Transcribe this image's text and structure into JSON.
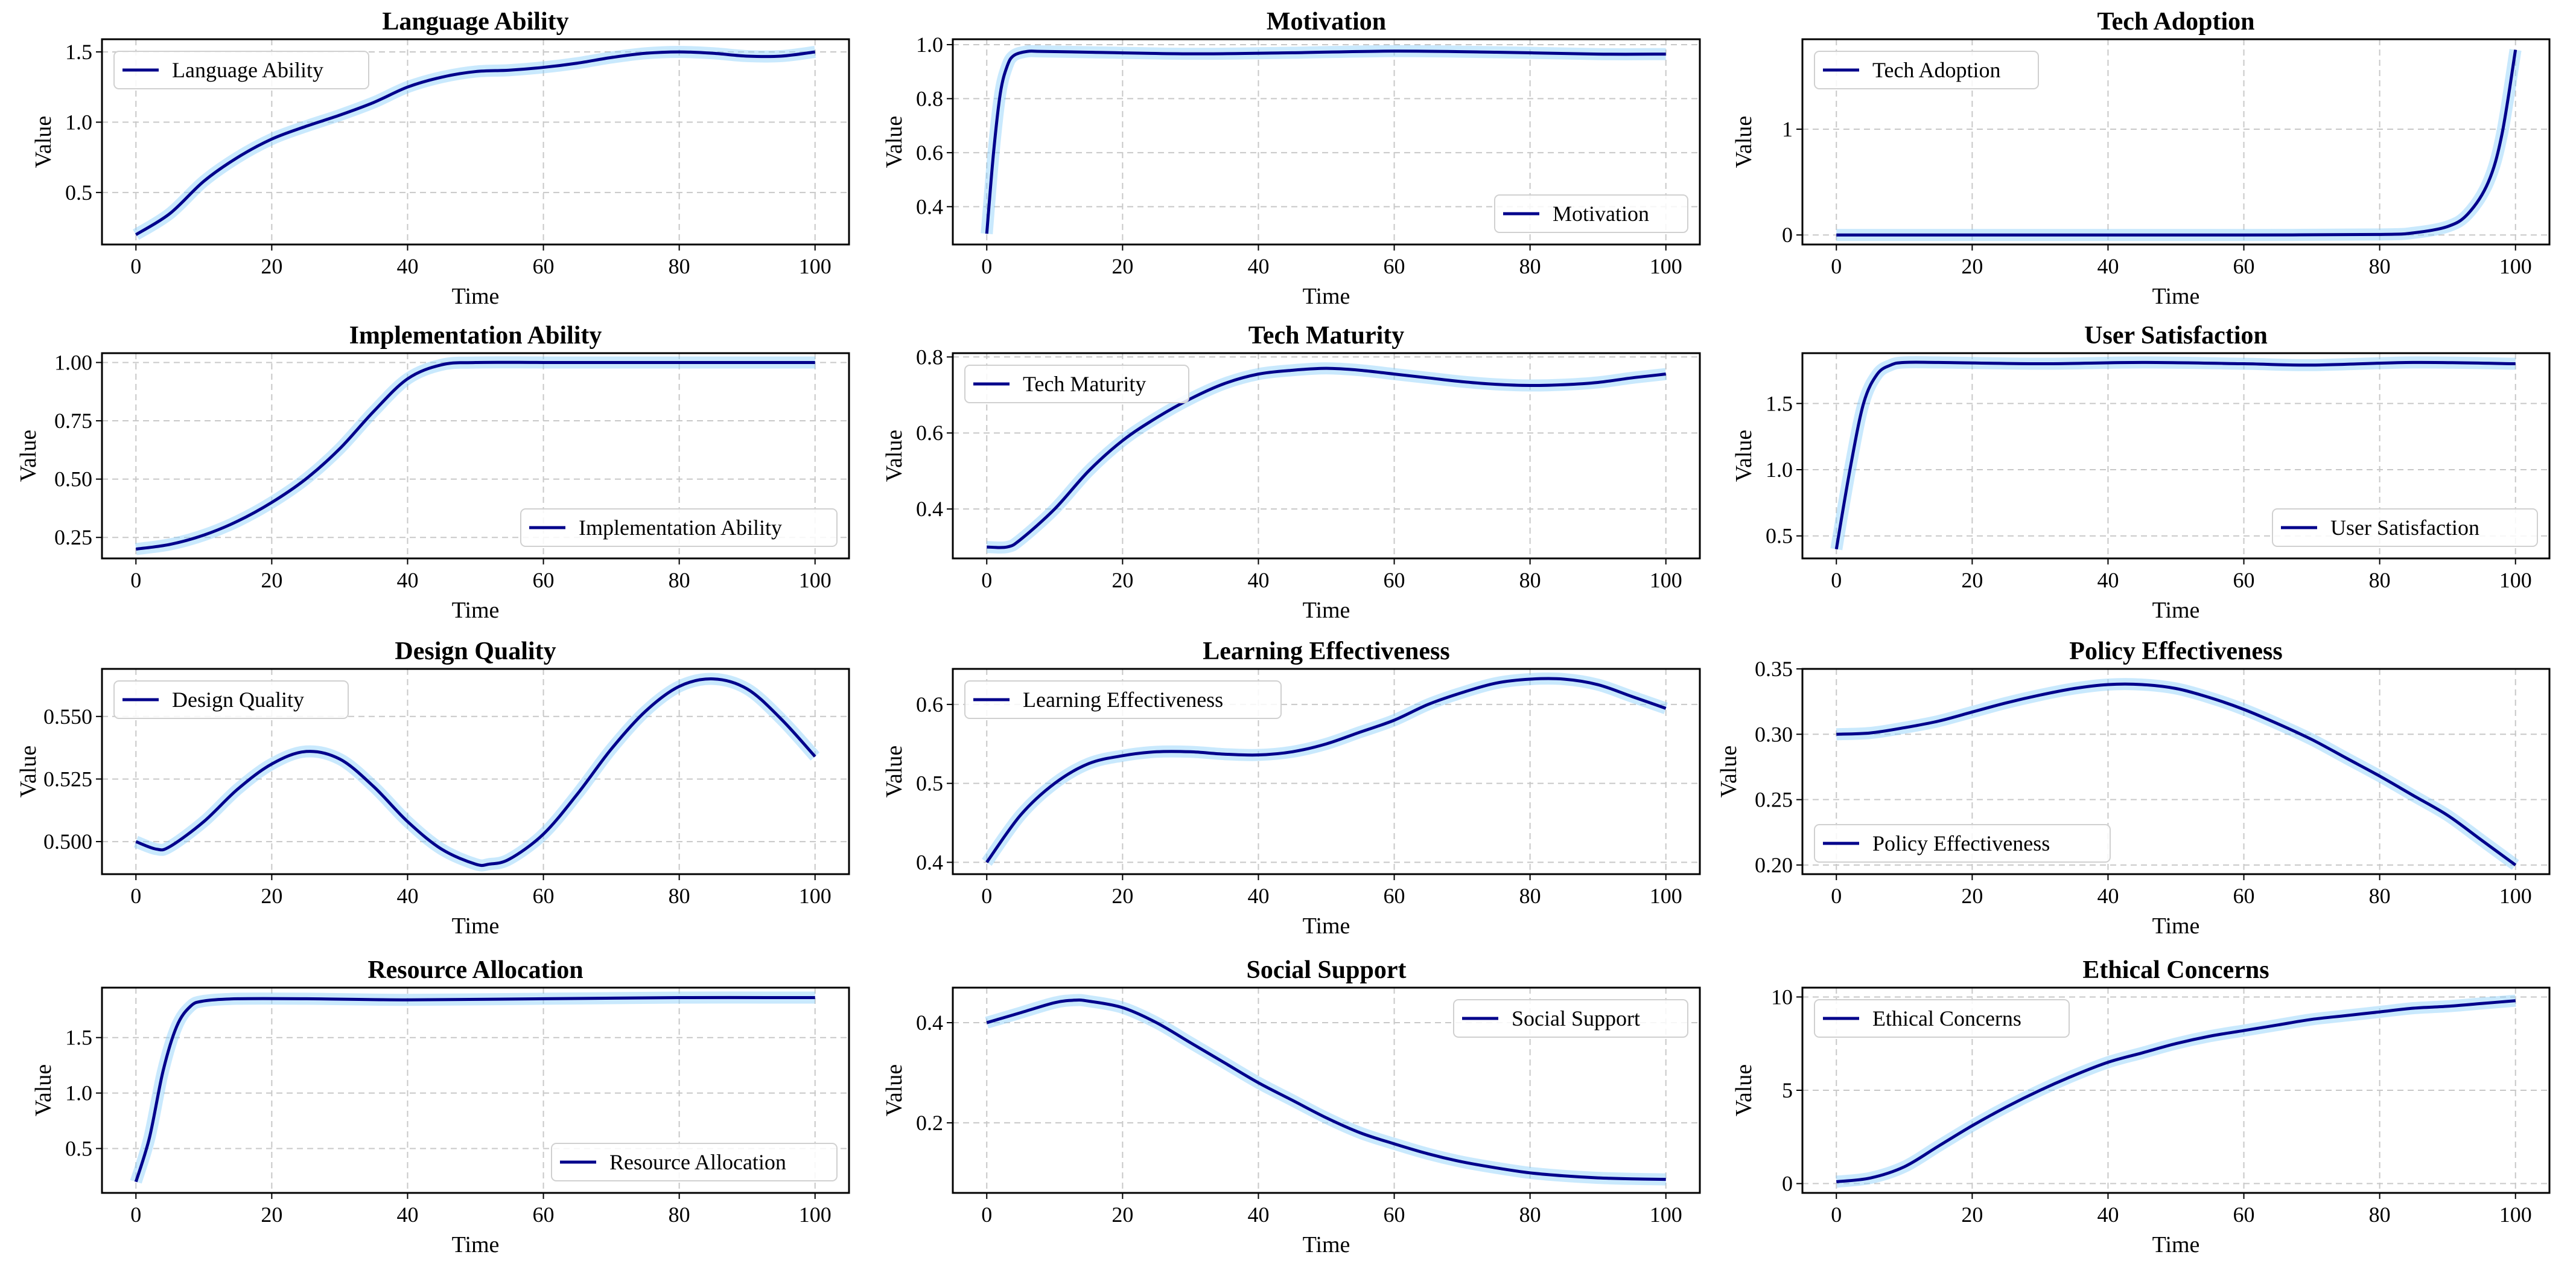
{
  "colors": {
    "line": "#00008b",
    "band": "#87cefa",
    "grid": "#c8c8c8",
    "axis": "#000000"
  },
  "chart_data": [
    {
      "type": "line",
      "title": "Language Ability",
      "xlabel": "Time",
      "ylabel": "Value",
      "xlim": [
        -5,
        105
      ],
      "ylim": [
        0.13,
        1.59
      ],
      "xticks": [
        0,
        20,
        40,
        60,
        80,
        100
      ],
      "yticks": [
        "0.5",
        "1.0",
        "1.5"
      ],
      "grid": true,
      "legend": "upper-left",
      "series": [
        {
          "name": "Language Ability",
          "x": [
            0,
            5,
            10,
            15,
            20,
            25,
            30,
            35,
            40,
            45,
            50,
            55,
            60,
            65,
            70,
            75,
            80,
            85,
            90,
            95,
            100
          ],
          "y": [
            0.2,
            0.35,
            0.58,
            0.75,
            0.88,
            0.97,
            1.05,
            1.14,
            1.25,
            1.32,
            1.36,
            1.37,
            1.39,
            1.42,
            1.46,
            1.49,
            1.5,
            1.49,
            1.47,
            1.47,
            1.5
          ]
        }
      ]
    },
    {
      "type": "line",
      "title": "Motivation",
      "xlabel": "Time",
      "ylabel": "Value",
      "xlim": [
        -5,
        105
      ],
      "ylim": [
        0.26,
        1.02
      ],
      "xticks": [
        0,
        20,
        40,
        60,
        80,
        100
      ],
      "yticks": [
        "0.4",
        "0.6",
        "0.8",
        "1.0"
      ],
      "grid": true,
      "legend": "lower-right",
      "series": [
        {
          "name": "Motivation",
          "x": [
            0,
            1,
            2,
            3,
            4,
            6,
            8,
            15,
            30,
            45,
            60,
            75,
            90,
            100
          ],
          "y": [
            0.3,
            0.6,
            0.82,
            0.92,
            0.96,
            0.975,
            0.975,
            0.972,
            0.966,
            0.97,
            0.976,
            0.972,
            0.965,
            0.965
          ]
        }
      ]
    },
    {
      "type": "line",
      "title": "Tech Adoption",
      "xlabel": "Time",
      "ylabel": "Value",
      "xlim": [
        -5,
        105
      ],
      "ylim": [
        -0.09,
        1.85
      ],
      "xticks": [
        0,
        20,
        40,
        60,
        80,
        100
      ],
      "yticks": [
        "0",
        "1"
      ],
      "grid": true,
      "legend": "upper-left",
      "series": [
        {
          "name": "Tech Adoption",
          "x": [
            0,
            20,
            40,
            60,
            80,
            85,
            90,
            93,
            96,
            98,
            100
          ],
          "y": [
            0,
            0,
            0,
            0,
            0.005,
            0.02,
            0.08,
            0.2,
            0.5,
            0.95,
            1.75
          ]
        }
      ]
    },
    {
      "type": "line",
      "title": "Implementation Ability",
      "xlabel": "Time",
      "ylabel": "Value",
      "xlim": [
        -5,
        105
      ],
      "ylim": [
        0.16,
        1.04
      ],
      "xticks": [
        0,
        20,
        40,
        60,
        80,
        100
      ],
      "yticks": [
        "0.25",
        "0.50",
        "0.75",
        "1.00"
      ],
      "grid": true,
      "legend": "lower-right",
      "series": [
        {
          "name": "Implementation Ability",
          "x": [
            0,
            5,
            10,
            15,
            20,
            25,
            30,
            35,
            40,
            45,
            50,
            60,
            70,
            80,
            90,
            100
          ],
          "y": [
            0.2,
            0.22,
            0.26,
            0.32,
            0.4,
            0.5,
            0.63,
            0.79,
            0.93,
            0.99,
            1.0,
            1.0,
            1.0,
            1.0,
            1.0,
            1.0
          ]
        }
      ]
    },
    {
      "type": "line",
      "title": "Tech Maturity",
      "xlabel": "Time",
      "ylabel": "Value",
      "xlim": [
        -5,
        105
      ],
      "ylim": [
        0.27,
        0.81
      ],
      "xticks": [
        0,
        20,
        40,
        60,
        80,
        100
      ],
      "yticks": [
        "0.4",
        "0.6",
        "0.8"
      ],
      "grid": true,
      "legend": "upper-left",
      "series": [
        {
          "name": "Tech Maturity",
          "x": [
            0,
            3,
            5,
            10,
            15,
            20,
            25,
            30,
            35,
            40,
            45,
            50,
            55,
            60,
            65,
            70,
            75,
            80,
            85,
            90,
            95,
            100
          ],
          "y": [
            0.3,
            0.3,
            0.32,
            0.4,
            0.5,
            0.58,
            0.64,
            0.69,
            0.73,
            0.755,
            0.765,
            0.77,
            0.765,
            0.755,
            0.745,
            0.735,
            0.728,
            0.725,
            0.727,
            0.733,
            0.745,
            0.755
          ]
        }
      ]
    },
    {
      "type": "line",
      "title": "User Satisfaction",
      "xlabel": "Time",
      "ylabel": "Value",
      "xlim": [
        -5,
        105
      ],
      "ylim": [
        0.33,
        1.88
      ],
      "xticks": [
        0,
        20,
        40,
        60,
        80,
        100
      ],
      "yticks": [
        "0.5",
        "1.0",
        "1.5"
      ],
      "grid": true,
      "legend": "lower-right",
      "series": [
        {
          "name": "User Satisfaction",
          "x": [
            0,
            2,
            4,
            6,
            8,
            10,
            15,
            30,
            45,
            60,
            70,
            85,
            100
          ],
          "y": [
            0.4,
            1.0,
            1.5,
            1.72,
            1.79,
            1.81,
            1.81,
            1.8,
            1.81,
            1.8,
            1.79,
            1.81,
            1.8
          ]
        }
      ]
    },
    {
      "type": "line",
      "title": "Design Quality",
      "xlabel": "Time",
      "ylabel": "Value",
      "xlim": [
        -5,
        105
      ],
      "ylim": [
        0.487,
        0.569
      ],
      "xticks": [
        0,
        20,
        40,
        60,
        80,
        100
      ],
      "yticks": [
        "0.500",
        "0.525",
        "0.550"
      ],
      "grid": true,
      "legend": "upper-left",
      "series": [
        {
          "name": "Design Quality",
          "x": [
            0,
            3,
            5,
            10,
            15,
            20,
            25,
            30,
            35,
            40,
            45,
            50,
            52,
            55,
            60,
            65,
            70,
            75,
            80,
            85,
            90,
            95,
            100
          ],
          "y": [
            0.5,
            0.497,
            0.498,
            0.508,
            0.521,
            0.531,
            0.536,
            0.533,
            0.522,
            0.508,
            0.497,
            0.491,
            0.491,
            0.493,
            0.503,
            0.519,
            0.537,
            0.552,
            0.562,
            0.565,
            0.561,
            0.549,
            0.534
          ]
        }
      ]
    },
    {
      "type": "line",
      "title": "Learning Effectiveness",
      "xlabel": "Time",
      "ylabel": "Value",
      "xlim": [
        -5,
        105
      ],
      "ylim": [
        0.385,
        0.645
      ],
      "xticks": [
        0,
        20,
        40,
        60,
        80,
        100
      ],
      "yticks": [
        "0.4",
        "0.5",
        "0.6"
      ],
      "grid": true,
      "legend": "upper-left",
      "series": [
        {
          "name": "Learning Effectiveness",
          "x": [
            0,
            5,
            10,
            15,
            20,
            25,
            30,
            35,
            40,
            45,
            50,
            55,
            60,
            65,
            70,
            75,
            80,
            85,
            90,
            95,
            100
          ],
          "y": [
            0.4,
            0.46,
            0.5,
            0.525,
            0.535,
            0.54,
            0.54,
            0.537,
            0.536,
            0.54,
            0.55,
            0.565,
            0.58,
            0.6,
            0.615,
            0.627,
            0.632,
            0.632,
            0.625,
            0.61,
            0.595
          ]
        }
      ]
    },
    {
      "type": "line",
      "title": "Policy Effectiveness",
      "xlabel": "Time",
      "ylabel": "Value",
      "xlim": [
        -5,
        105
      ],
      "ylim": [
        0.193,
        0.35
      ],
      "xticks": [
        0,
        20,
        40,
        60,
        80,
        100
      ],
      "yticks": [
        "0.20",
        "0.25",
        "0.30",
        "0.35"
      ],
      "grid": true,
      "legend": "lower-left",
      "series": [
        {
          "name": "Policy Effectiveness",
          "x": [
            0,
            5,
            10,
            15,
            20,
            25,
            30,
            35,
            40,
            45,
            50,
            55,
            60,
            65,
            70,
            75,
            80,
            85,
            90,
            95,
            100
          ],
          "y": [
            0.3,
            0.301,
            0.305,
            0.31,
            0.317,
            0.324,
            0.33,
            0.335,
            0.338,
            0.338,
            0.335,
            0.328,
            0.319,
            0.308,
            0.296,
            0.282,
            0.268,
            0.253,
            0.238,
            0.219,
            0.2
          ]
        }
      ]
    },
    {
      "type": "line",
      "title": "Resource Allocation",
      "xlabel": "Time",
      "ylabel": "Value",
      "xlim": [
        -5,
        105
      ],
      "ylim": [
        0.1,
        1.95
      ],
      "xticks": [
        0,
        20,
        40,
        60,
        80,
        100
      ],
      "yticks": [
        "0.5",
        "1.0",
        "1.5"
      ],
      "grid": true,
      "legend": "lower-right",
      "series": [
        {
          "name": "Resource Allocation",
          "x": [
            0,
            2,
            4,
            6,
            8,
            10,
            15,
            25,
            40,
            60,
            80,
            100
          ],
          "y": [
            0.2,
            0.6,
            1.2,
            1.6,
            1.78,
            1.83,
            1.85,
            1.85,
            1.84,
            1.85,
            1.86,
            1.86
          ]
        }
      ]
    },
    {
      "type": "line",
      "title": "Social Support",
      "xlabel": "Time",
      "ylabel": "Value",
      "xlim": [
        -5,
        105
      ],
      "ylim": [
        0.06,
        0.47
      ],
      "xticks": [
        0,
        20,
        40,
        60,
        80,
        100
      ],
      "yticks": [
        "0.2",
        "0.4"
      ],
      "grid": true,
      "legend": "upper-right",
      "series": [
        {
          "name": "Social Support",
          "x": [
            0,
            5,
            10,
            13,
            15,
            20,
            25,
            30,
            35,
            40,
            45,
            50,
            55,
            60,
            65,
            70,
            75,
            80,
            85,
            90,
            95,
            100
          ],
          "y": [
            0.4,
            0.42,
            0.44,
            0.445,
            0.443,
            0.43,
            0.4,
            0.36,
            0.32,
            0.28,
            0.245,
            0.21,
            0.18,
            0.158,
            0.138,
            0.122,
            0.11,
            0.1,
            0.094,
            0.09,
            0.088,
            0.087
          ]
        }
      ]
    },
    {
      "type": "line",
      "title": "Ethical Concerns",
      "xlabel": "Time",
      "ylabel": "Value",
      "xlim": [
        -5,
        105
      ],
      "ylim": [
        -0.5,
        10.5
      ],
      "xticks": [
        0,
        20,
        40,
        60,
        80,
        100
      ],
      "yticks": [
        "0",
        "5",
        "10"
      ],
      "grid": true,
      "legend": "upper-left",
      "series": [
        {
          "name": "Ethical Concerns",
          "x": [
            0,
            5,
            10,
            15,
            20,
            25,
            30,
            35,
            40,
            45,
            50,
            55,
            60,
            65,
            70,
            75,
            80,
            85,
            90,
            95,
            100
          ],
          "y": [
            0.1,
            0.3,
            0.9,
            2.0,
            3.1,
            4.1,
            5.0,
            5.8,
            6.5,
            7.0,
            7.5,
            7.9,
            8.2,
            8.5,
            8.8,
            9.0,
            9.2,
            9.4,
            9.5,
            9.65,
            9.8
          ]
        }
      ]
    }
  ]
}
